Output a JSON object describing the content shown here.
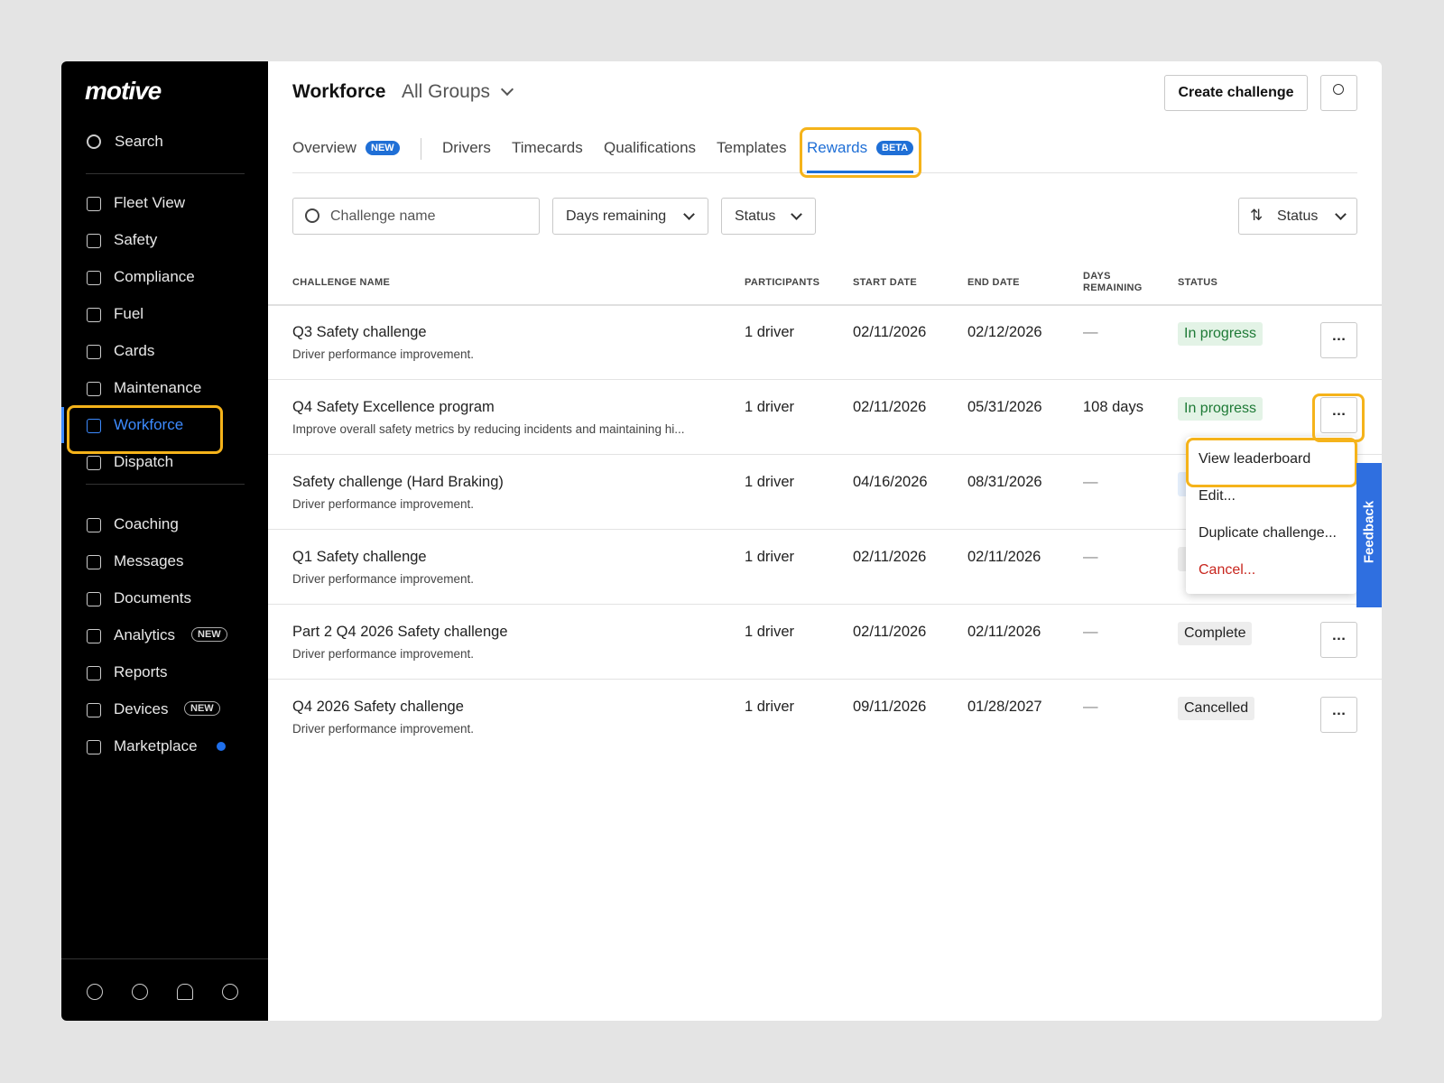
{
  "sidebar": {
    "logo": "motive",
    "search": "Search",
    "nav_groups": [
      [
        {
          "label": "Fleet View"
        },
        {
          "label": "Safety"
        },
        {
          "label": "Compliance"
        },
        {
          "label": "Fuel"
        },
        {
          "label": "Cards"
        },
        {
          "label": "Maintenance"
        },
        {
          "label": "Workforce",
          "active": true
        },
        {
          "label": "Dispatch"
        }
      ],
      [
        {
          "label": "Coaching"
        },
        {
          "label": "Messages"
        },
        {
          "label": "Documents"
        },
        {
          "label": "Analytics",
          "badge": "NEW"
        },
        {
          "label": "Reports"
        },
        {
          "label": "Devices",
          "badge": "NEW"
        },
        {
          "label": "Marketplace",
          "dot": true
        }
      ]
    ]
  },
  "header": {
    "title": "Workforce",
    "group": "All Groups",
    "create_button": "Create challenge"
  },
  "tabs": [
    {
      "label": "Overview",
      "badge": "NEW"
    },
    {
      "label": "Drivers"
    },
    {
      "label": "Timecards"
    },
    {
      "label": "Qualifications"
    },
    {
      "label": "Templates"
    },
    {
      "label": "Rewards",
      "badge": "BETA",
      "active": true
    }
  ],
  "filters": {
    "search_placeholder": "Challenge name",
    "days_remaining": "Days remaining",
    "status": "Status",
    "sort": "Status"
  },
  "table": {
    "columns": [
      "CHALLENGE NAME",
      "PARTICIPANTS",
      "START DATE",
      "END DATE",
      "DAYS REMAINING",
      "STATUS"
    ],
    "rows": [
      {
        "name": "Q3 Safety challenge",
        "description": "Driver performance improvement.",
        "participants": "1 driver",
        "start_date": "02/11/2026",
        "end_date": "02/12/2026",
        "days_remaining": "—",
        "status": "In progress",
        "status_tone": "success"
      },
      {
        "name": "Q4 Safety Excellence program",
        "description": "Improve overall safety metrics by reducing incidents and maintaining hi...",
        "participants": "1 driver",
        "start_date": "02/11/2026",
        "end_date": "05/31/2026",
        "days_remaining": "108 days",
        "status": "In progress",
        "status_tone": "success"
      },
      {
        "name": "Safety challenge (Hard Braking)",
        "description": "Driver performance improvement.",
        "participants": "1 driver",
        "start_date": "04/16/2026",
        "end_date": "08/31/2026",
        "days_remaining": "—"
      },
      {
        "name": "Q1 Safety challenge",
        "description": "Driver performance improvement.",
        "participants": "1 driver",
        "start_date": "02/11/2026",
        "end_date": "02/11/2026",
        "days_remaining": "—"
      },
      {
        "name": "Part 2 Q4 2026 Safety challenge",
        "description": "Driver performance improvement.",
        "participants": "1 driver",
        "start_date": "02/11/2026",
        "end_date": "02/11/2026",
        "days_remaining": "—",
        "status": "Complete",
        "status_tone": "neutral"
      },
      {
        "name": "Q4 2026 Safety challenge",
        "description": "Driver performance improvement.",
        "participants": "1 driver",
        "start_date": "09/11/2026",
        "end_date": "01/28/2027",
        "days_remaining": "—",
        "status": "Cancelled",
        "status_tone": "neutral"
      }
    ]
  },
  "menu": [
    {
      "label": "View leaderboard"
    },
    {
      "label": "Edit..."
    },
    {
      "label": "Duplicate challenge..."
    },
    {
      "label": "Cancel...",
      "danger": true
    }
  ],
  "feedback": "Feedback"
}
